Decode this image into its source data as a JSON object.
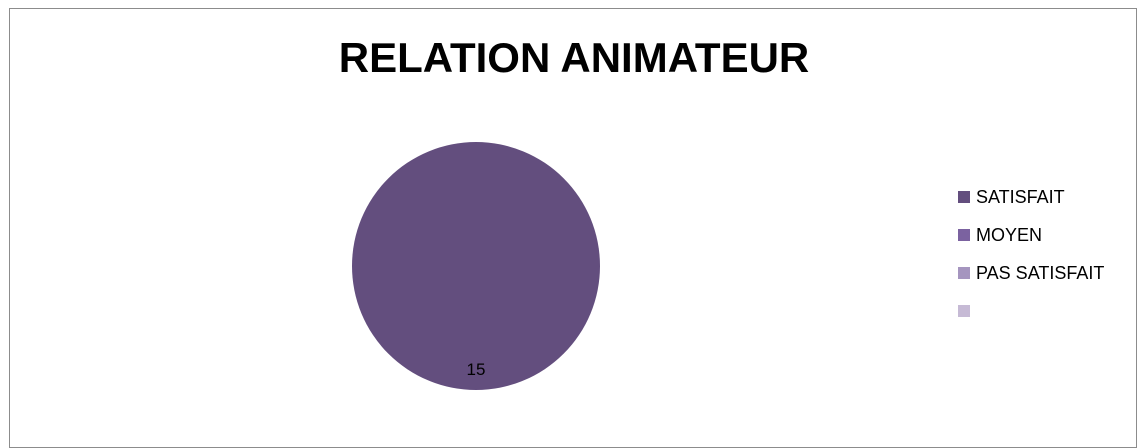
{
  "chart_data": {
    "type": "pie",
    "title": "RELATION ANIMATEUR",
    "categories": [
      "SATISFAIT",
      "MOYEN",
      "PAS SATISFAIT",
      ""
    ],
    "values": [
      15,
      0,
      0,
      0
    ],
    "data_labels": [
      "15",
      "",
      "",
      ""
    ],
    "colors": [
      "#634e7e",
      "#7b62a0",
      "#a595bf",
      "#c6bad5"
    ],
    "legend_position": "right"
  }
}
